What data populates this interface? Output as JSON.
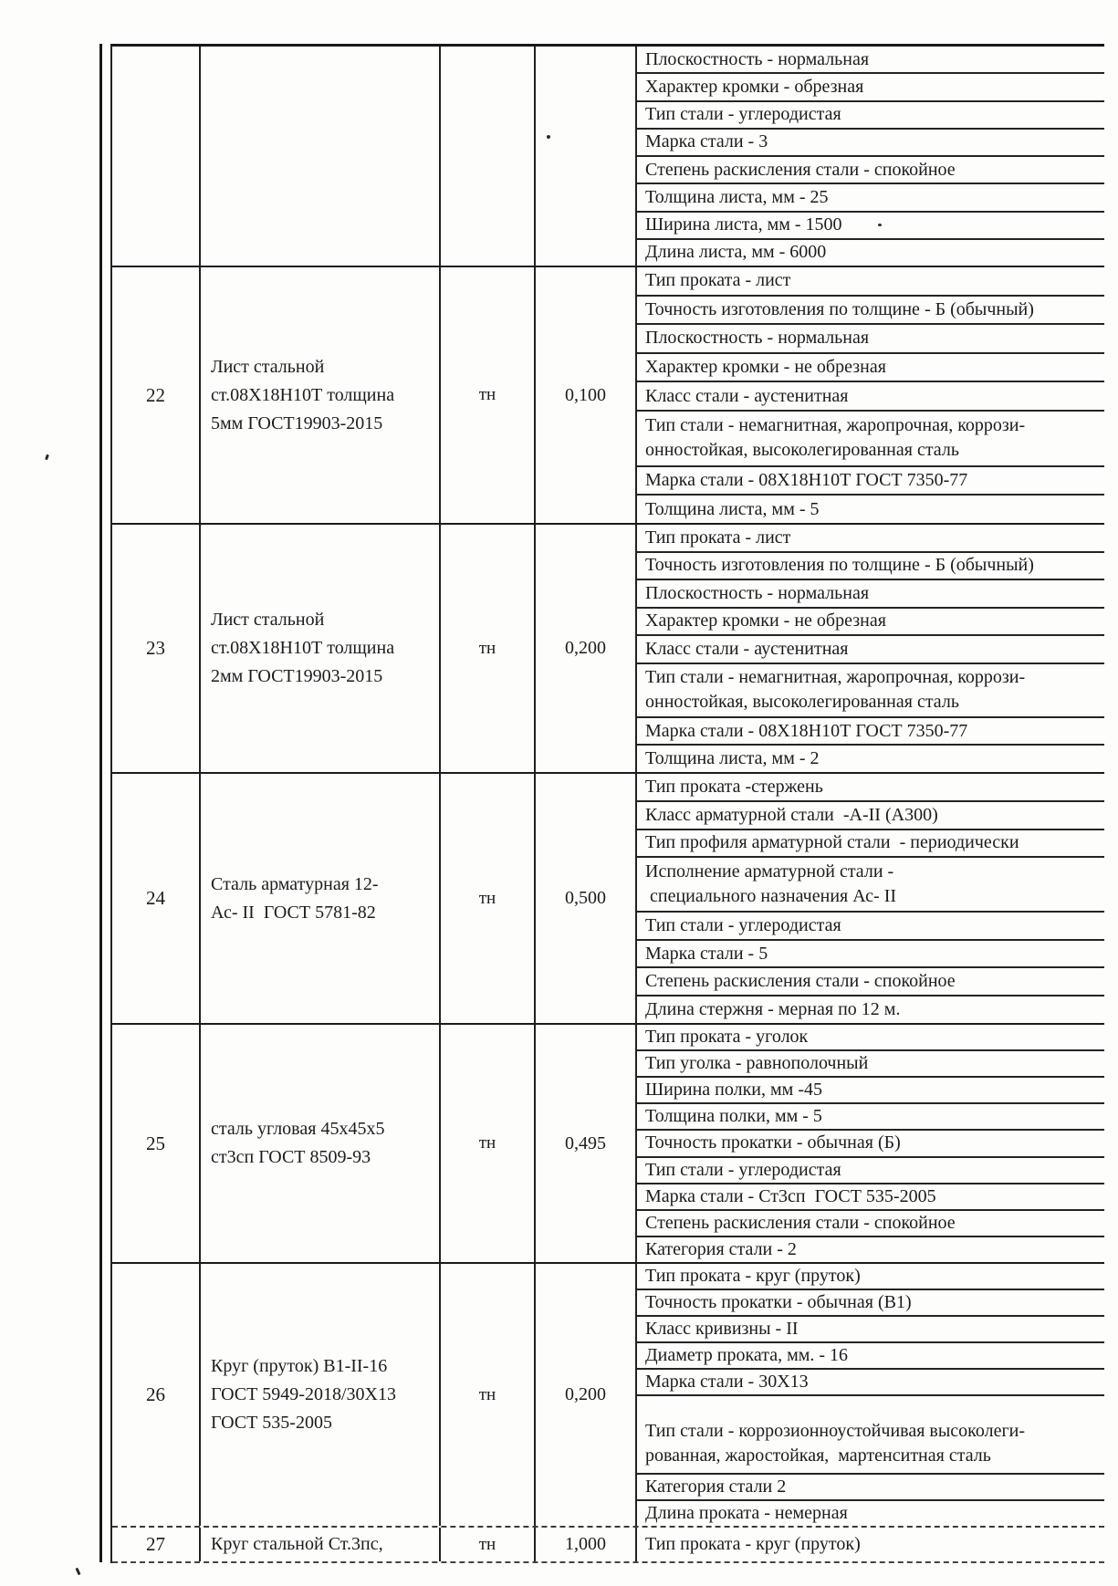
{
  "table": {
    "unit_label": "тн",
    "rows": [
      {
        "num": "",
        "name": "",
        "unit": "",
        "qty": "",
        "characteristics": [
          "Плоскостность - нормальная",
          "Характер кромки - обрезная",
          "Тип стали - углеродистая",
          "Марка стали - 3",
          "Степень раскисления стали - спокойное",
          "Толщина листа, мм - 25",
          "Ширина листа, мм - 1500",
          "Длина листа, мм - 6000"
        ]
      },
      {
        "num": "22",
        "name": "Лист стальной\nст.08Х18Н10Т толщина\n5мм ГОСТ19903-2015",
        "unit": "тн",
        "qty": "0,100",
        "characteristics": [
          "Тип проката - лист",
          "Точность изготовления по толщине - Б (обычный)",
          "Плоскостность - нормальная",
          "Характер кромки - не обрезная",
          "Класс стали - аустенитная",
          "Тип стали - немагнитная, жаропрочная, коррози-\nонностойкая, высоколегированная сталь",
          "Марка стали - 08Х18Н10Т ГОСТ 7350-77",
          "Толщина листа, мм - 5"
        ]
      },
      {
        "num": "23",
        "name": "Лист стальной\nст.08Х18Н10Т толщина\n2мм ГОСТ19903-2015",
        "unit": "тн",
        "qty": "0,200",
        "characteristics": [
          "Тип проката - лист",
          "Точность изготовления по толщине - Б (обычный)",
          "Плоскостность - нормальная",
          "Характер кромки - не обрезная",
          "Класс стали - аустенитная",
          "Тип стали - немагнитная, жаропрочная, коррози-\nонностойкая, высоколегированная сталь",
          "Марка стали - 08Х18Н10Т ГОСТ 7350-77",
          "Толщина листа, мм - 2"
        ]
      },
      {
        "num": "24",
        "name": "Сталь арматурная 12-\nАс- II  ГОСТ 5781-82",
        "unit": "тн",
        "qty": "0,500",
        "characteristics": [
          "Тип проката -стержень",
          "Класс арматурной стали  -А-II (А300)",
          "Тип профиля арматурной стали  - периодически",
          "Исполнение арматурной стали -\n специального назначения Ас- II",
          "Тип стали - углеродистая",
          "Марка стали - 5",
          "Степень раскисления стали - спокойное",
          "Длина стержня - мерная по 12 м."
        ]
      },
      {
        "num": "25",
        "name": "сталь угловая 45х45х5\nст3сп ГОСТ 8509-93",
        "unit": "тн",
        "qty": "0,495",
        "characteristics": [
          "Тип проката - уголок",
          "Тип уголка - равнополочный",
          "Ширина полки, мм -45",
          "Толщина полки, мм - 5",
          "Точность прокатки - обычная (Б)",
          "Тип стали - углеродистая",
          "Марка стали - Ст3сп  ГОСТ 535-2005",
          "Степень раскисления стали - спокойное",
          "Категория стали - 2"
        ]
      },
      {
        "num": "26",
        "name": "Круг (пруток) В1-II-16\nГОСТ 5949-2018/30Х13\nГОСТ 535-2005",
        "unit": "тн",
        "qty": "0,200",
        "characteristics": [
          "Тип проката - круг (пруток)",
          "Точность прокатки - обычная (В1)",
          "Класс кривизны - II",
          "Диаметр проката, мм. - 16",
          "Марка стали - 30Х13",
          "Тип стали - коррозионноустойчивая высоколеги-\nрованная, жаростойкая,  мартенситная сталь",
          "Категория стали 2",
          "Длина проката - немерная"
        ]
      },
      {
        "num": "27",
        "name": "Круг стальной Ст.3пс,",
        "unit": "тн",
        "qty": "1,000",
        "characteristics": [
          "Тип проката - круг (пруток)"
        ]
      }
    ]
  }
}
